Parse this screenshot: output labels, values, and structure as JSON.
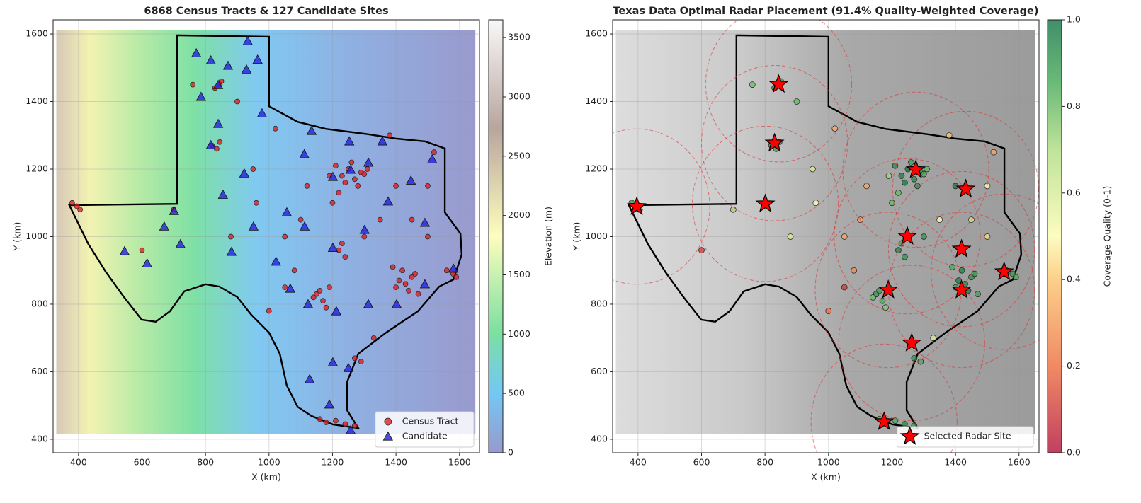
{
  "chart_data": [
    {
      "type": "scatter",
      "title": "6868 Census Tracts & 127 Candidate Sites",
      "xlabel": "X (km)",
      "ylabel": "Y (km)",
      "xlim": [
        320,
        1663
      ],
      "ylim": [
        360,
        1642
      ],
      "xticks": [
        400,
        600,
        800,
        1000,
        1200,
        1400,
        1600
      ],
      "yticks": [
        400,
        600,
        800,
        1000,
        1200,
        1400,
        1600
      ],
      "grid": true,
      "legend": "lower right",
      "background_colormap": "terrain",
      "colorbar": {
        "label": "Elevation (m)",
        "colormap": "terrain",
        "lim": [
          0,
          3650
        ],
        "ticks": [
          0,
          500,
          1000,
          1500,
          2000,
          2500,
          3000,
          3500
        ]
      },
      "series": [
        {
          "name": "Census Tract",
          "color": "#e41a1c",
          "marker": "circle",
          "x": [
            1230,
            1250,
            1270,
            1290,
            1210,
            1240,
            1260,
            1300,
            1280,
            1220,
            1190,
            1310,
            1410,
            1430,
            1450,
            1420,
            1440,
            1400,
            1460,
            1390,
            1470,
            1150,
            1170,
            1190,
            1160,
            1180,
            1140,
            1220,
            1240,
            1230,
            380,
            395,
            405,
            820,
            835,
            845,
            830,
            845,
            850,
            1180,
            1210,
            1240,
            1270,
            1160,
            1270,
            1290,
            1560,
            1580,
            1590,
            1100,
            1350,
            1500,
            1050,
            950,
            1020,
            900,
            1120,
            1380,
            1450,
            1520,
            700,
            600,
            1330,
            1000,
            1080,
            1200,
            1300,
            1400,
            1500,
            760,
            880,
            960,
            1050
          ],
          "y": [
            1180,
            1200,
            1170,
            1190,
            1210,
            1160,
            1220,
            1185,
            1150,
            1130,
            1180,
            1200,
            870,
            860,
            880,
            900,
            840,
            850,
            890,
            910,
            830,
            830,
            810,
            850,
            840,
            790,
            820,
            960,
            940,
            980,
            1100,
            1090,
            1080,
            1270,
            1260,
            1280,
            1440,
            1450,
            1460,
            450,
            455,
            445,
            440,
            460,
            640,
            630,
            900,
            890,
            880,
            1050,
            1050,
            1000,
            850,
            1200,
            1320,
            1400,
            1150,
            1300,
            1050,
            1250,
            1080,
            960,
            700,
            780,
            900,
            1100,
            1000,
            1150,
            1150,
            1450,
            1000,
            1100,
            1000
          ]
        },
        {
          "name": "Candidate",
          "color": "#2222dd",
          "marker": "triangle",
          "x": [
            771,
            817,
            871,
            929,
            964,
            933,
            786,
            840,
            840,
            817,
            978,
            1134,
            1111,
            1253,
            1357,
            1313,
            1257,
            1201,
            1447,
            1514,
            922,
            855,
            701,
            670,
            721,
            616,
            545,
            882,
            951,
            1022,
            1067,
            1123,
            1212,
            1313,
            1402,
            1491,
            1581,
            1201,
            1250,
            1190,
            1257,
            1128,
            1112,
            1201,
            1301,
            1375,
            1491,
            1056
          ],
          "y": [
            1543,
            1522,
            1506,
            1495,
            1524,
            1579,
            1414,
            1449,
            1334,
            1271,
            1365,
            1313,
            1244,
            1282,
            1282,
            1219,
            1198,
            1177,
            1166,
            1229,
            1187,
            1124,
            1076,
            1030,
            978,
            921,
            957,
            955,
            1030,
            926,
            846,
            800,
            779,
            800,
            800,
            859,
            905,
            628,
            611,
            503,
            427,
            578,
            1030,
            967,
            1020,
            1104,
            1041,
            1072
          ]
        }
      ]
    },
    {
      "type": "scatter",
      "title": "Texas Data Optimal Radar Placement (91.4% Quality-Weighted Coverage)",
      "xlabel": "X (km)",
      "ylabel": "Y (km)",
      "xlim": [
        320,
        1663
      ],
      "ylim": [
        360,
        1642
      ],
      "xticks": [
        400,
        600,
        800,
        1000,
        1200,
        1400,
        1600
      ],
      "yticks": [
        400,
        600,
        800,
        1000,
        1200,
        1400,
        1600
      ],
      "grid": true,
      "legend": "lower right",
      "background_colormap": "gray",
      "colorbar": {
        "label": "Coverage Quality (0-1)",
        "colormap": "RdYlGn",
        "lim": [
          0,
          1
        ],
        "ticks": [
          {
            "value": 0,
            "label": "0.0"
          },
          0.2,
          0.4,
          0.6,
          0.8,
          {
            "value": 1,
            "label": "1.0"
          }
        ]
      },
      "coverage_radius": 230,
      "points": {
        "x": [
          1230,
          1250,
          1270,
          1290,
          1210,
          1240,
          1260,
          1300,
          1280,
          1220,
          1190,
          1310,
          1410,
          1430,
          1450,
          1420,
          1440,
          1400,
          1460,
          1390,
          1470,
          1150,
          1170,
          1190,
          1160,
          1180,
          1140,
          1220,
          1240,
          1230,
          380,
          395,
          405,
          820,
          835,
          845,
          830,
          845,
          850,
          1180,
          1210,
          1240,
          1270,
          1160,
          1270,
          1290,
          1560,
          1580,
          1590,
          1100,
          1350,
          1500,
          1050,
          950,
          1020,
          900,
          1120,
          1380,
          1450,
          1520,
          700,
          600,
          1330,
          1000,
          1080,
          1200,
          1300,
          1400,
          1500,
          760,
          880,
          960,
          1050
        ],
        "y": [
          1180,
          1200,
          1170,
          1190,
          1210,
          1160,
          1220,
          1185,
          1150,
          1130,
          1180,
          1200,
          870,
          860,
          880,
          900,
          840,
          850,
          890,
          910,
          830,
          830,
          810,
          850,
          840,
          790,
          820,
          960,
          940,
          980,
          1100,
          1090,
          1080,
          1270,
          1260,
          1280,
          1440,
          1450,
          1460,
          450,
          455,
          445,
          440,
          460,
          640,
          630,
          900,
          890,
          880,
          1050,
          1050,
          1000,
          850,
          1200,
          1320,
          1400,
          1150,
          1300,
          1050,
          1250,
          1080,
          960,
          700,
          780,
          900,
          1100,
          1000,
          1150,
          1150,
          1450,
          1000,
          1100,
          1000
        ],
        "values": [
          0.95,
          0.97,
          0.93,
          0.9,
          0.92,
          0.96,
          0.88,
          0.85,
          0.91,
          0.8,
          0.7,
          0.82,
          0.95,
          0.93,
          0.9,
          0.94,
          0.96,
          0.88,
          0.9,
          0.85,
          0.87,
          0.9,
          0.85,
          0.92,
          0.88,
          0.75,
          0.8,
          0.93,
          0.9,
          0.86,
          0.9,
          0.85,
          0.8,
          0.92,
          0.88,
          0.9,
          0.93,
          0.95,
          0.9,
          0.9,
          0.85,
          0.92,
          0.88,
          0.82,
          0.9,
          0.85,
          0.92,
          0.88,
          0.85,
          0.3,
          0.5,
          0.4,
          0.1,
          0.6,
          0.3,
          0.8,
          0.3,
          0.35,
          0.6,
          0.3,
          0.7,
          0.1,
          0.6,
          0.2,
          0.25,
          0.8,
          0.9,
          0.95,
          0.5,
          0.8,
          0.6,
          0.5,
          0.3
        ]
      },
      "series": [
        {
          "name": "Selected Radar Site",
          "color": "#ff0000",
          "marker": "star",
          "x": [
            843,
            830,
            801,
            396,
            1275,
            1432,
            1248,
            1419,
            1553,
            1188,
            1419,
            1262,
            1175
          ],
          "y": [
            1451,
            1277,
            1097,
            1089,
            1198,
            1141,
            1001,
            963,
            896,
            842,
            842,
            685,
            452
          ]
        }
      ]
    }
  ]
}
